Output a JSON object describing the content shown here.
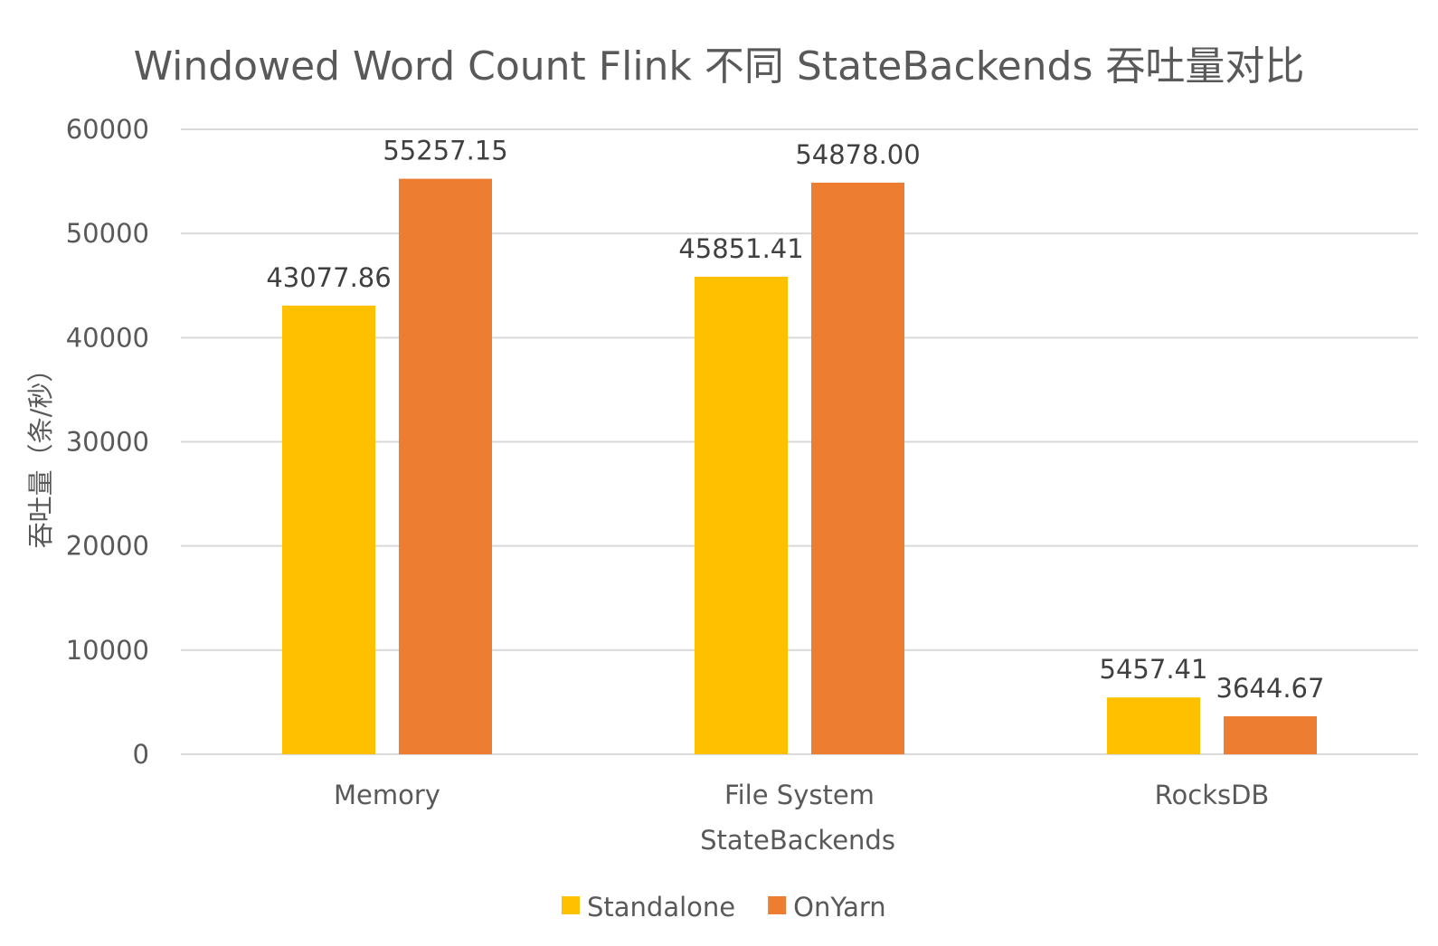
{
  "chart_data": {
    "type": "bar",
    "title": "Windowed Word Count Flink 不同 StateBackends 吞吐量对比",
    "xlabel": "StateBackends",
    "ylabel": "吞吐量（条/秒）",
    "categories": [
      "Memory",
      "File System",
      "RocksDB"
    ],
    "series": [
      {
        "name": "Standalone",
        "color": "#FFC000",
        "values": [
          43077.86,
          45851.41,
          5457.41
        ],
        "labels": [
          "43077.86",
          "45851.41",
          "5457.41"
        ]
      },
      {
        "name": "OnYarn",
        "color": "#ED7D31",
        "values": [
          55257.15,
          54878.0,
          3644.67
        ],
        "labels": [
          "55257.15",
          "54878.00",
          "3644.67"
        ]
      }
    ],
    "ylim": [
      0,
      60000
    ],
    "yticks": [
      "0",
      "10000",
      "20000",
      "30000",
      "40000",
      "50000",
      "60000"
    ],
    "grid": true,
    "legend_position": "bottom"
  }
}
